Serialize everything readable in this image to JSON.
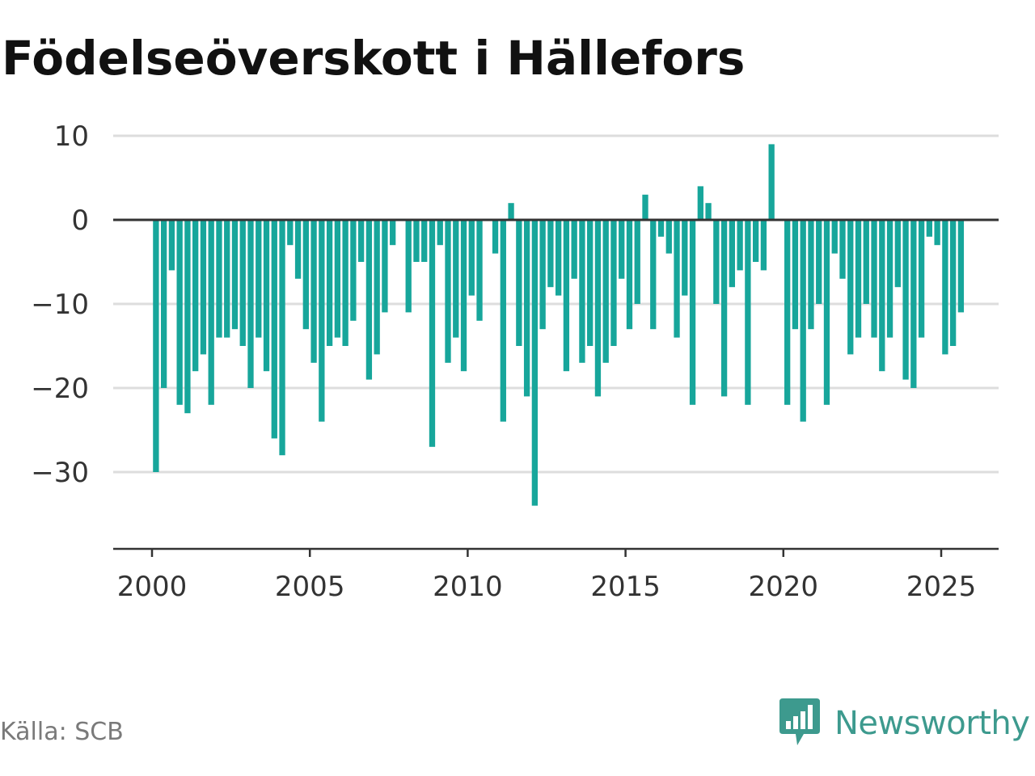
{
  "title": "Födelseöverskott i Hällefors",
  "source": "Källa: SCB",
  "brand": {
    "name": "Newsworthy",
    "icon": "newsworthy-logo-icon",
    "color": "#3d9a8e"
  },
  "colors": {
    "bar": "#17a69b",
    "grid": "#dddddd",
    "zero": "#333333",
    "text": "#333333"
  },
  "chart_data": {
    "type": "bar",
    "title": "Födelseöverskott i Hällefors",
    "xlabel": "",
    "ylabel": "",
    "frequency": "quarterly",
    "start": "2000-Q1",
    "x_ticks": [
      "2000",
      "2005",
      "2010",
      "2015",
      "2020",
      "2025"
    ],
    "y_ticks": [
      10,
      0,
      -10,
      -20,
      -30
    ],
    "y_tick_labels": [
      "10",
      "0",
      "−10",
      "−20",
      "−30"
    ],
    "ylim": [
      -39,
      10
    ],
    "grid": true,
    "legend": "none",
    "values": [
      -30,
      -20,
      -6,
      -22,
      -23,
      -18,
      -16,
      -22,
      -14,
      -14,
      -13,
      -15,
      -20,
      -14,
      -18,
      -26,
      -28,
      -3,
      -7,
      -13,
      -17,
      -24,
      -15,
      -14,
      -15,
      -12,
      -5,
      -19,
      -16,
      -11,
      -3,
      0,
      -11,
      -5,
      -5,
      -27,
      -3,
      -17,
      -14,
      -18,
      -9,
      -12,
      0,
      -4,
      -24,
      2,
      -15,
      -21,
      -34,
      -13,
      -8,
      -9,
      -18,
      -7,
      -17,
      -15,
      -21,
      -17,
      -15,
      -7,
      -13,
      -10,
      3,
      -13,
      -2,
      -4,
      -14,
      -9,
      -22,
      4,
      2,
      -10,
      -21,
      -8,
      -6,
      -22,
      -5,
      -6,
      9,
      0,
      -22,
      -13,
      -24,
      -13,
      -10,
      -22,
      -4,
      -7,
      -16,
      -14,
      -10,
      -14,
      -18,
      -14,
      -8,
      -19,
      -20,
      -14,
      -2,
      -3,
      -16,
      -15,
      -11
    ]
  }
}
